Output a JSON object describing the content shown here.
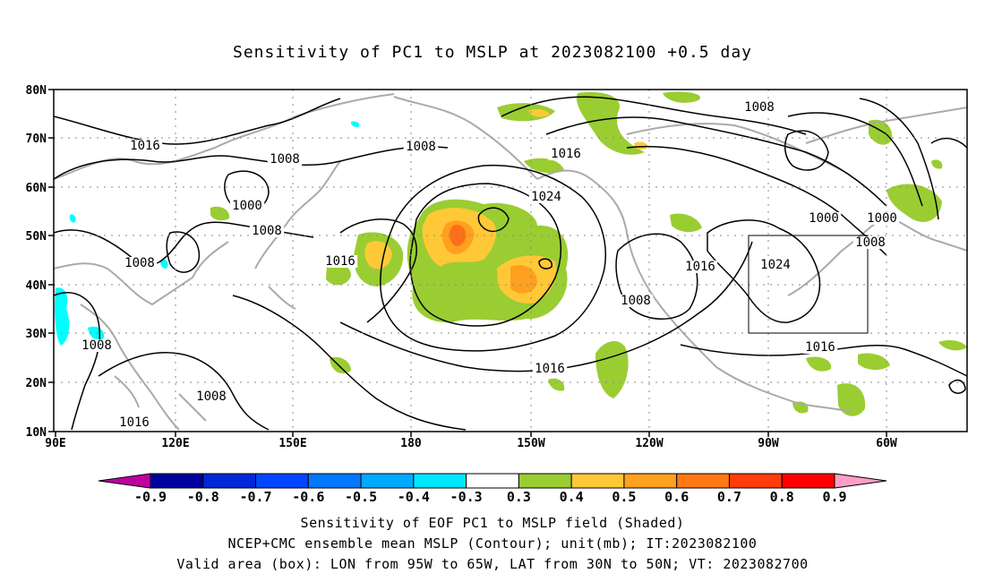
{
  "title": "Sensitivity of PC1 to MSLP at 2023082100 +0.5 day",
  "map": {
    "lat_ticks": [
      "80N",
      "70N",
      "60N",
      "50N",
      "40N",
      "30N",
      "20N",
      "10N"
    ],
    "lon_ticks": [
      "90E",
      "120E",
      "150E",
      "180",
      "150W",
      "120W",
      "90W",
      "60W"
    ],
    "valid_box": {
      "lon": [
        "95W",
        "65W"
      ],
      "lat": [
        "30N",
        "50N"
      ]
    },
    "contour_labels": [
      "1016",
      "1008",
      "1008",
      "1000",
      "1008",
      "1008",
      "1016",
      "1016",
      "1024",
      "1016",
      "1008",
      "1008",
      "1008",
      "1016",
      "1000",
      "1000",
      "1016",
      "1008",
      "1024",
      "1016",
      "1008"
    ],
    "colors": {
      "coast": "#aaaaaa",
      "contour": "#000000",
      "pos_03": "#9acd32",
      "pos_04": "#ffc837",
      "pos_05": "#ffa01e",
      "pos_06": "#ff6e19",
      "neg_04": "#00ffff"
    }
  },
  "colorbar": {
    "labels": [
      "-0.9",
      "-0.8",
      "-0.7",
      "-0.6",
      "-0.5",
      "-0.4",
      "-0.3",
      "0.3",
      "0.4",
      "0.5",
      "0.6",
      "0.7",
      "0.8",
      "0.9"
    ],
    "colors": [
      "#0000a0",
      "#0028d8",
      "#0046ff",
      "#0078ff",
      "#00aaff",
      "#00e6ff",
      "#ffffff",
      "#9acd32",
      "#ffc837",
      "#ffa01e",
      "#ff7814",
      "#ff3c0a",
      "#ff0000"
    ],
    "low_tri": "#c000a0",
    "high_tri": "#ff9ec8"
  },
  "captions": [
    "Sensitivity of EOF PC1 to MSLP field (Shaded)",
    "NCEP+CMC ensemble mean MSLP (Contour); unit(mb); IT:2023082100",
    "Valid area (box): LON from 95W to 65W, LAT from 30N to 50N; VT: 2023082700"
  ]
}
